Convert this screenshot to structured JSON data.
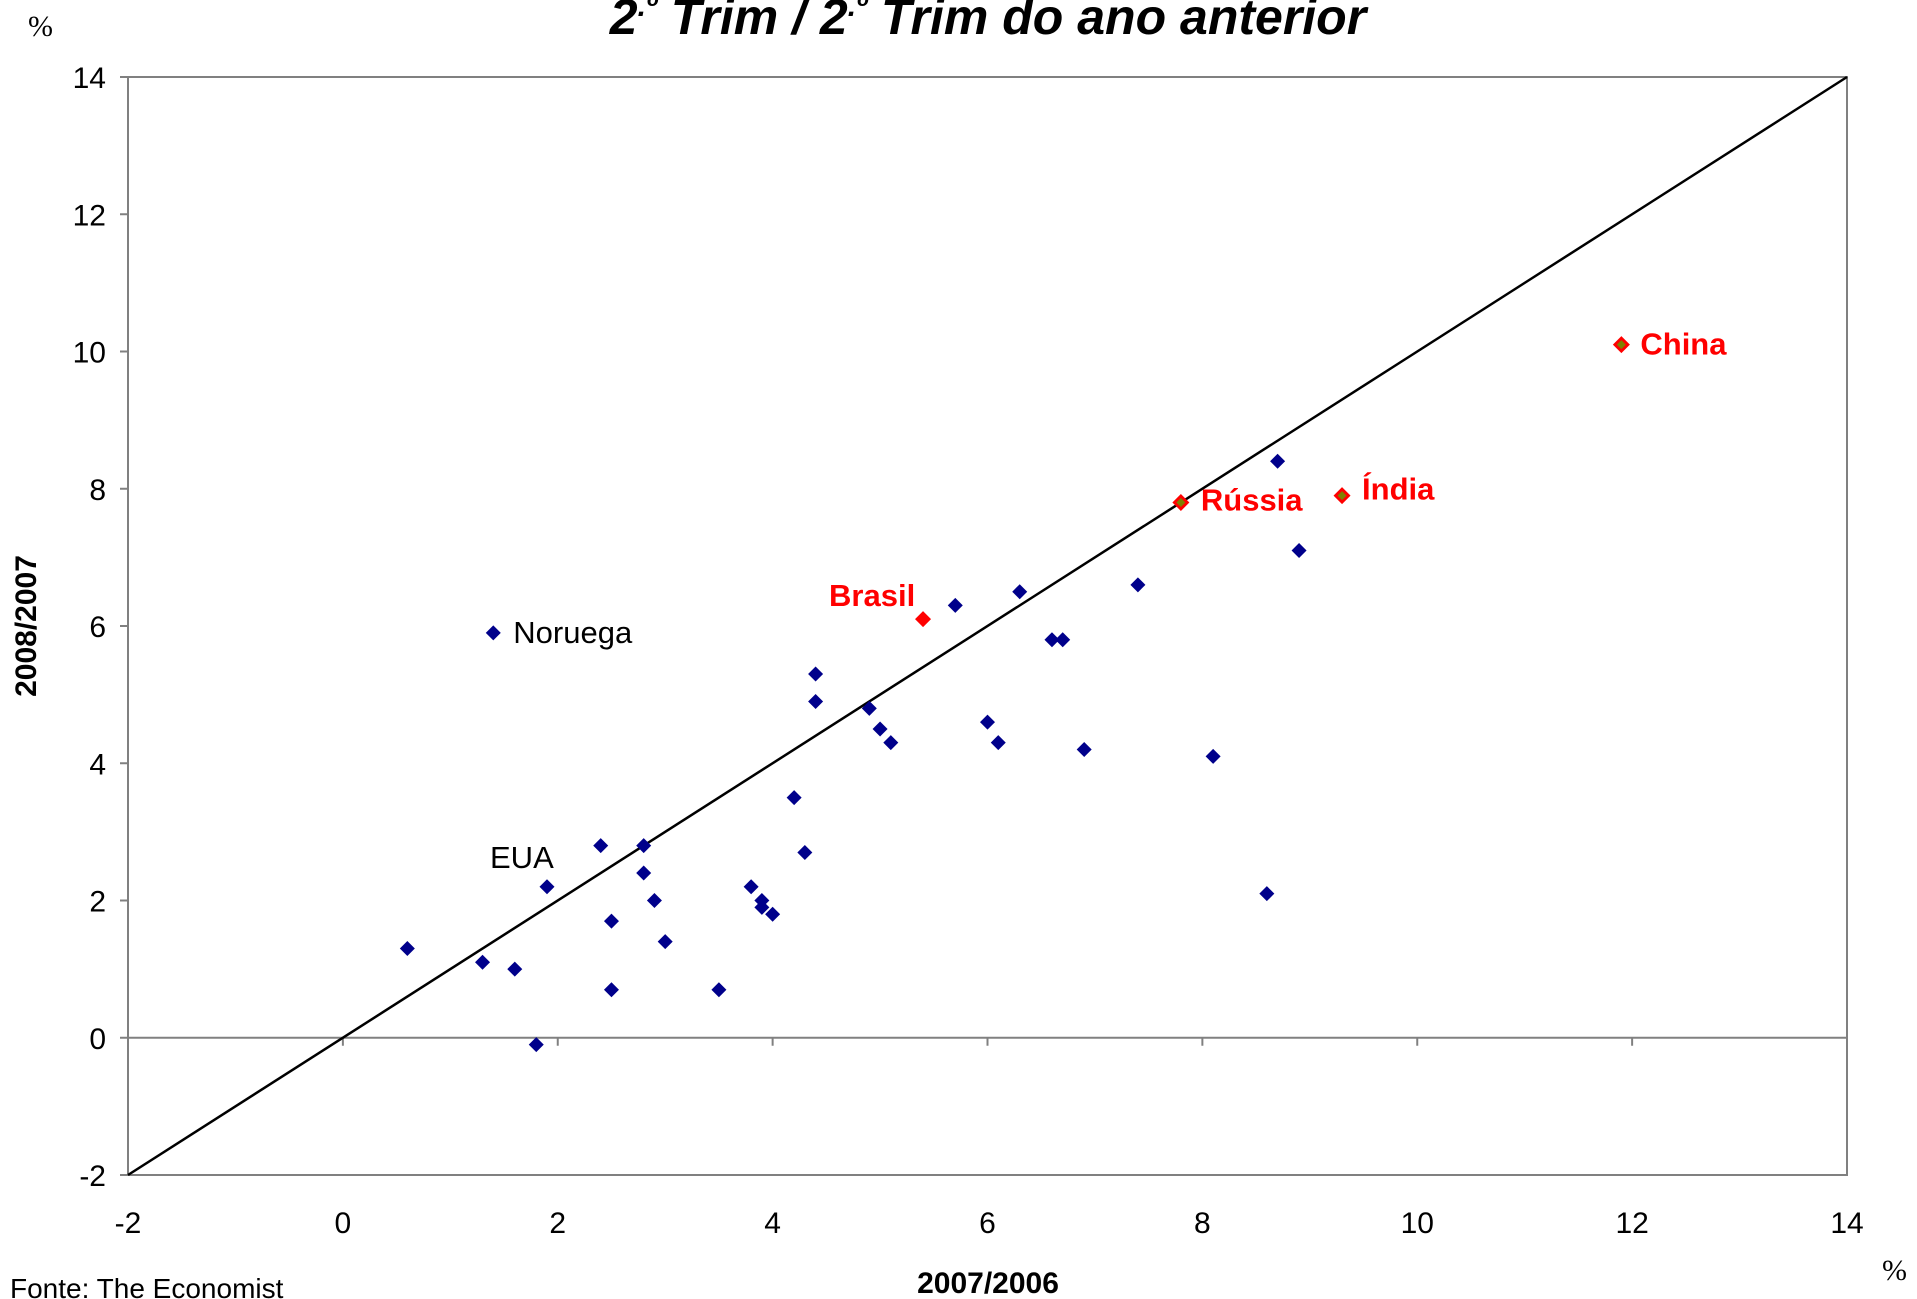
{
  "chart_data": {
    "type": "scatter",
    "title": "2.º Trim / 2.º Trim do ano anterior",
    "xlabel": "2007/2006",
    "ylabel": "2008/2007",
    "x_unit": "%",
    "y_unit": "%",
    "xlim": [
      -2,
      14
    ],
    "ylim": [
      -2,
      14
    ],
    "x_ticks": [
      -2,
      0,
      2,
      4,
      6,
      8,
      10,
      12,
      14
    ],
    "y_ticks": [
      -2,
      0,
      2,
      4,
      6,
      8,
      10,
      12,
      14
    ],
    "grid": false,
    "reference_line": {
      "from": [
        -2,
        -2
      ],
      "to": [
        14,
        14
      ]
    },
    "colors": {
      "point": "#00008B",
      "highlight": "#FF0000",
      "highlight_center": "#808000",
      "line": "#000000"
    },
    "points": [
      {
        "x": 0.6,
        "y": 1.3
      },
      {
        "x": 1.3,
        "y": 1.1
      },
      {
        "x": 1.6,
        "y": 1.0
      },
      {
        "x": 1.8,
        "y": -0.1
      },
      {
        "x": 1.4,
        "y": 5.9
      },
      {
        "x": 1.9,
        "y": 2.2
      },
      {
        "x": 2.4,
        "y": 2.8
      },
      {
        "x": 2.5,
        "y": 1.7
      },
      {
        "x": 2.5,
        "y": 0.7
      },
      {
        "x": 2.8,
        "y": 2.8
      },
      {
        "x": 2.8,
        "y": 2.4
      },
      {
        "x": 2.9,
        "y": 2.0
      },
      {
        "x": 3.0,
        "y": 1.4
      },
      {
        "x": 3.5,
        "y": 0.7
      },
      {
        "x": 3.8,
        "y": 2.2
      },
      {
        "x": 3.9,
        "y": 2.0
      },
      {
        "x": 3.9,
        "y": 1.9
      },
      {
        "x": 4.0,
        "y": 1.8
      },
      {
        "x": 4.2,
        "y": 3.5
      },
      {
        "x": 4.3,
        "y": 2.7
      },
      {
        "x": 4.4,
        "y": 5.3
      },
      {
        "x": 4.4,
        "y": 4.9
      },
      {
        "x": 4.9,
        "y": 4.8
      },
      {
        "x": 5.0,
        "y": 4.5
      },
      {
        "x": 5.1,
        "y": 4.3
      },
      {
        "x": 5.7,
        "y": 6.3
      },
      {
        "x": 6.0,
        "y": 4.6
      },
      {
        "x": 6.1,
        "y": 4.3
      },
      {
        "x": 6.3,
        "y": 6.5
      },
      {
        "x": 6.6,
        "y": 5.8
      },
      {
        "x": 6.7,
        "y": 5.8
      },
      {
        "x": 6.9,
        "y": 4.2
      },
      {
        "x": 7.4,
        "y": 6.6
      },
      {
        "x": 8.1,
        "y": 4.1
      },
      {
        "x": 8.6,
        "y": 2.1
      },
      {
        "x": 8.7,
        "y": 8.4
      },
      {
        "x": 8.9,
        "y": 7.1
      }
    ],
    "highlighted": [
      {
        "label": "Brasil",
        "x": 5.4,
        "y": 6.1
      },
      {
        "label": "Rússia",
        "x": 7.8,
        "y": 7.8
      },
      {
        "label": "Índia",
        "x": 9.3,
        "y": 7.9
      },
      {
        "label": "China",
        "x": 11.9,
        "y": 10.1
      }
    ],
    "annotations": [
      {
        "text": "Noruega",
        "x": 1.4,
        "y": 5.9
      },
      {
        "text": "EUA",
        "x": 1.9,
        "y": 2.2
      }
    ]
  },
  "source": "Fonte: The Economist"
}
